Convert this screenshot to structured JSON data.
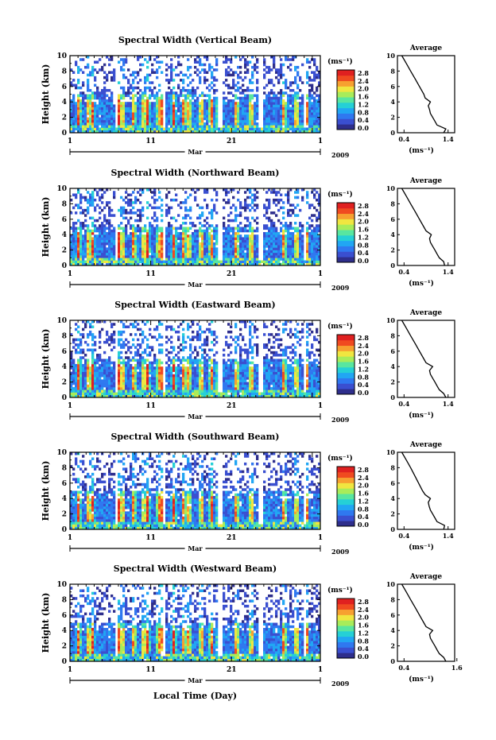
{
  "figure": {
    "xlabel": "Local Time (Day)",
    "month_label": "Mar",
    "year_label": "2009",
    "ylabel": "Height (km)",
    "unit_label": "(ms⁻¹)",
    "avg_title": "Average"
  },
  "chart_data": [
    {
      "type": "heatmap",
      "title": "Spectral Width (Vertical Beam)",
      "x_ticklabels": [
        "1",
        "11",
        "21",
        "1"
      ],
      "y_ticklabels": [
        "0",
        "2",
        "4",
        "6",
        "8",
        "10"
      ],
      "ylim": [
        0,
        10
      ],
      "colorbar_labels": [
        "0.0",
        "0.4",
        "0.8",
        "1.2",
        "1.6",
        "2.0",
        "2.4",
        "2.8"
      ],
      "average_profile": {
        "xlim_labels": [
          "0.4",
          "1.4"
        ],
        "height_km": [
          0,
          0.5,
          1,
          1.5,
          2,
          2.5,
          3,
          3.5,
          4,
          4.5,
          5,
          6,
          7,
          8,
          9,
          10
        ],
        "width_ms": [
          1.3,
          1.35,
          1.15,
          1.1,
          1.05,
          1.0,
          0.98,
          0.95,
          1.0,
          0.88,
          0.85,
          0.75,
          0.65,
          0.55,
          0.45,
          0.35
        ]
      }
    },
    {
      "type": "heatmap",
      "title": "Spectral Width (Northward Beam)",
      "x_ticklabels": [
        "1",
        "11",
        "21",
        "1"
      ],
      "y_ticklabels": [
        "0",
        "2",
        "4",
        "6",
        "8",
        "10"
      ],
      "ylim": [
        0,
        10
      ],
      "colorbar_labels": [
        "0.0",
        "0.4",
        "0.8",
        "1.2",
        "1.6",
        "2.0",
        "2.4",
        "2.8"
      ],
      "average_profile": {
        "xlim_labels": [
          "0.4",
          "1.4"
        ],
        "height_km": [
          0,
          0.5,
          1,
          1.5,
          2,
          2.5,
          3,
          3.5,
          4,
          4.5,
          5,
          6,
          7,
          8,
          9,
          10
        ],
        "width_ms": [
          1.32,
          1.3,
          1.2,
          1.15,
          1.1,
          1.05,
          1.0,
          0.98,
          1.02,
          0.9,
          0.85,
          0.75,
          0.65,
          0.55,
          0.45,
          0.35
        ]
      }
    },
    {
      "type": "heatmap",
      "title": "Spectral Width (Eastward Beam)",
      "x_ticklabels": [
        "1",
        "11",
        "21",
        "1"
      ],
      "y_ticklabels": [
        "0",
        "2",
        "4",
        "6",
        "8",
        "10"
      ],
      "ylim": [
        0,
        10
      ],
      "colorbar_labels": [
        "0.0",
        "0.4",
        "0.8",
        "1.2",
        "1.6",
        "2.0",
        "2.4",
        "2.8"
      ],
      "average_profile": {
        "xlim_labels": [
          "0.4",
          "1.4"
        ],
        "height_km": [
          0,
          0.5,
          1,
          1.5,
          2,
          2.5,
          3,
          3.5,
          4,
          4.5,
          5,
          6,
          7,
          8,
          9,
          10
        ],
        "width_ms": [
          1.35,
          1.3,
          1.2,
          1.15,
          1.1,
          1.05,
          1.0,
          0.98,
          1.05,
          0.9,
          0.85,
          0.75,
          0.65,
          0.55,
          0.45,
          0.35
        ]
      }
    },
    {
      "type": "heatmap",
      "title": "Spectral Width (Southward Beam)",
      "x_ticklabels": [
        "1",
        "11",
        "21",
        "1"
      ],
      "y_ticklabels": [
        "0",
        "2",
        "4",
        "6",
        "8",
        "10"
      ],
      "ylim": [
        0,
        10
      ],
      "colorbar_labels": [
        "0.0",
        "0.4",
        "0.8",
        "1.2",
        "1.6",
        "2.0",
        "2.4",
        "2.8"
      ],
      "average_profile": {
        "xlim_labels": [
          "0.4",
          "1.4"
        ],
        "height_km": [
          0,
          0.5,
          1,
          1.5,
          2,
          2.5,
          3,
          3.5,
          4,
          4.5,
          5,
          6,
          7,
          8,
          9,
          10
        ],
        "width_ms": [
          1.3,
          1.32,
          1.15,
          1.1,
          1.05,
          1.0,
          0.97,
          0.95,
          1.0,
          0.88,
          0.82,
          0.73,
          0.64,
          0.55,
          0.45,
          0.35
        ]
      }
    },
    {
      "type": "heatmap",
      "title": "Spectral Width (Westward Beam)",
      "x_ticklabels": [
        "1",
        "11",
        "21",
        "1"
      ],
      "y_ticklabels": [
        "0",
        "2",
        "4",
        "6",
        "8",
        "10"
      ],
      "ylim": [
        0,
        10
      ],
      "colorbar_labels": [
        "0.0",
        "0.4",
        "0.8",
        "1.2",
        "1.6",
        "2.0",
        "2.4",
        "2.8"
      ],
      "average_profile": {
        "xlim_labels": [
          "0.4",
          "1.6"
        ],
        "height_km": [
          0,
          0.5,
          1,
          1.5,
          2,
          2.5,
          3,
          3.5,
          4,
          4.5,
          5,
          6,
          7,
          8,
          9,
          10
        ],
        "width_ms": [
          1.35,
          1.3,
          1.2,
          1.15,
          1.1,
          1.05,
          1.0,
          0.98,
          1.05,
          0.9,
          0.85,
          0.75,
          0.65,
          0.55,
          0.45,
          0.35
        ]
      }
    }
  ],
  "colors": {
    "colormap": [
      "#2e2e8c",
      "#3a4fd0",
      "#2f78f0",
      "#21a6f3",
      "#25d0d6",
      "#58e6a0",
      "#a8ec5a",
      "#f0e640",
      "#f7a030",
      "#f04a20",
      "#e02020"
    ],
    "average_line": "#000000",
    "background": "#ffffff"
  }
}
